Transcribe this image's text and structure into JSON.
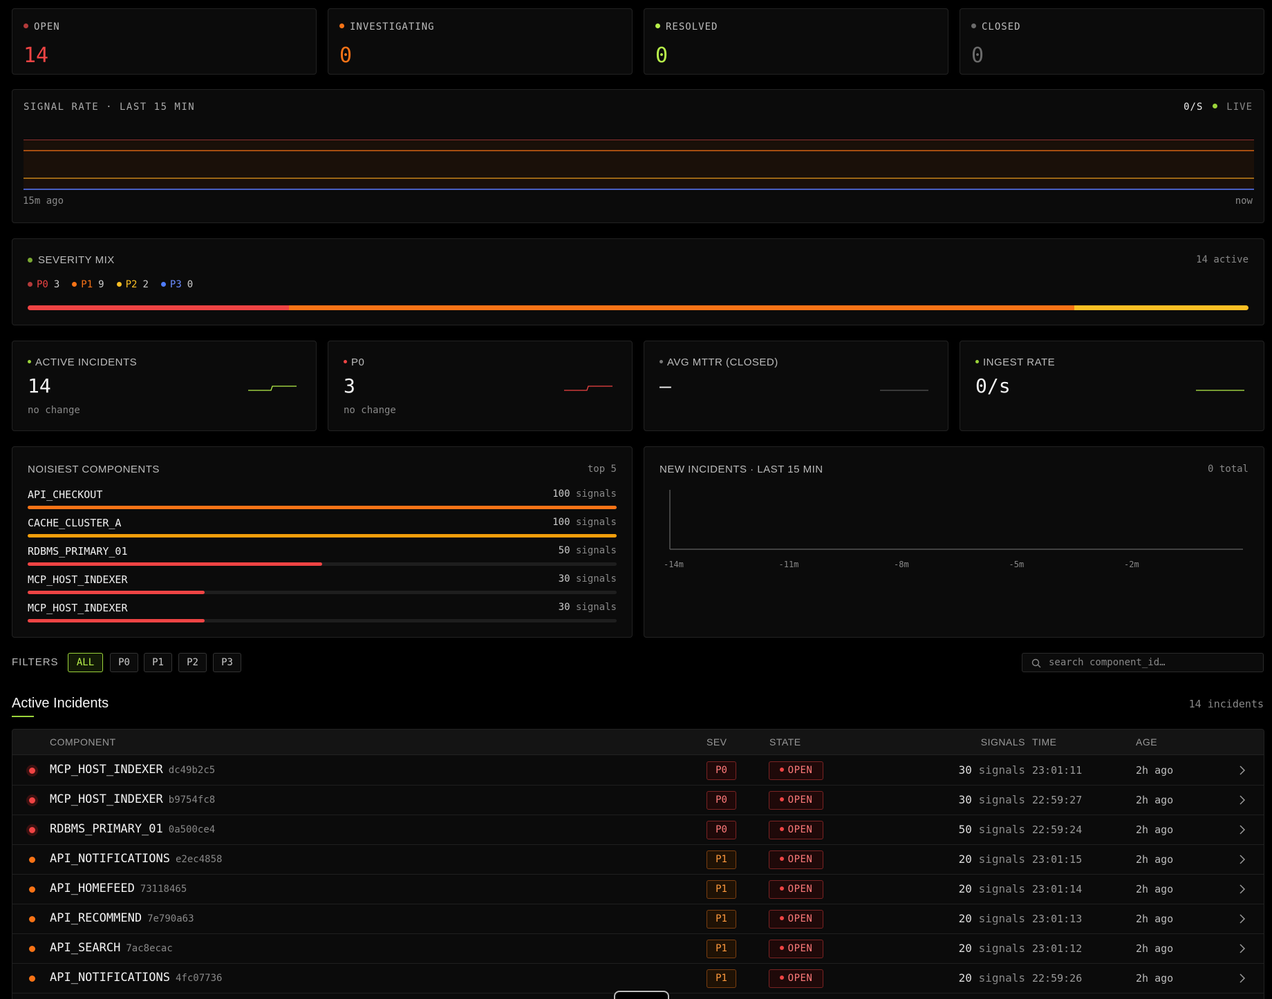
{
  "status_cards": [
    {
      "label": "OPEN",
      "value": "14",
      "color": "#ef4444",
      "dot": "#b33a3a"
    },
    {
      "label": "INVESTIGATING",
      "value": "0",
      "color": "#f97316",
      "dot": "#f97316"
    },
    {
      "label": "RESOLVED",
      "value": "0",
      "color": "#b7f04a",
      "dot": "#b7f04a"
    },
    {
      "label": "CLOSED",
      "value": "0",
      "color": "#6b6b6b",
      "dot": "#6b6b6b"
    }
  ],
  "signal_rate": {
    "title": "SIGNAL RATE · LAST 15 MIN",
    "rate": "0/S",
    "live": "LIVE",
    "start_label": "15m ago",
    "end_label": "now"
  },
  "severity_mix": {
    "title": "SEVERITY MIX",
    "active": "14 active",
    "items": [
      {
        "label": "P0",
        "count": "3",
        "color": "#ef4444",
        "dot": "#b33a3a",
        "value": 3
      },
      {
        "label": "P1",
        "count": "9",
        "color": "#f97316",
        "dot": "#f97316",
        "value": 9
      },
      {
        "label": "P2",
        "count": "2",
        "color": "#fbbf24",
        "dot": "#fbbf24",
        "value": 2
      },
      {
        "label": "P3",
        "count": "0",
        "color": "#6b8cff",
        "dot": "#4f7cff",
        "value": 0
      }
    ]
  },
  "metrics": [
    {
      "label": "ACTIVE INCIDENTS",
      "value": "14",
      "sub": "no change",
      "dot": "#9bd43a",
      "spark": "#b7f04a",
      "shape": "step"
    },
    {
      "label": "P0",
      "value": "3",
      "sub": "no change",
      "dot": "#ef4444",
      "spark": "#ef4444",
      "shape": "step"
    },
    {
      "label": "AVG MTTR (CLOSED)",
      "value": "—",
      "sub": "",
      "dot": "#777777",
      "spark": "#555555",
      "shape": "flat"
    },
    {
      "label": "INGEST RATE",
      "value": "0/s",
      "sub": "",
      "dot": "#9bd43a",
      "spark": "#b7f04a",
      "shape": "flat"
    }
  ],
  "noisiest": {
    "title": "NOISIEST COMPONENTS",
    "top": "top 5",
    "unit": "signals",
    "max": 100,
    "items": [
      {
        "name": "API_CHECKOUT",
        "count": "100",
        "value": 100,
        "color": "#f97316"
      },
      {
        "name": "CACHE_CLUSTER_A",
        "count": "100",
        "value": 100,
        "color": "#f59e0b"
      },
      {
        "name": "RDBMS_PRIMARY_01",
        "count": "50",
        "value": 50,
        "color": "#ef4444"
      },
      {
        "name": "MCP_HOST_INDEXER",
        "count": "30",
        "value": 30,
        "color": "#ef4444"
      },
      {
        "name": "MCP_HOST_INDEXER",
        "count": "30",
        "value": 30,
        "color": "#ef4444"
      }
    ]
  },
  "new_incidents": {
    "title": "NEW INCIDENTS · LAST 15 MIN",
    "total": "0 total",
    "ticks": [
      "-14m",
      "-11m",
      "-8m",
      "-5m",
      "-2m"
    ]
  },
  "filters": {
    "label": "FILTERS",
    "chips": [
      "ALL",
      "P0",
      "P1",
      "P2",
      "P3"
    ],
    "active": "ALL",
    "search_placeholder": "search component_id…"
  },
  "incidents": {
    "title": "Active Incidents",
    "count": "14 incidents",
    "columns": {
      "component": "COMPONENT",
      "sev": "SEV",
      "state": "STATE",
      "signals": "SIGNALS",
      "time": "TIME",
      "age": "AGE"
    },
    "unit": "signals",
    "rows": [
      {
        "component": "MCP_HOST_INDEXER",
        "id": "dc49b2c5",
        "sev": "P0",
        "state": "OPEN",
        "signals": "30",
        "time": "23:01:11",
        "age": "2h ago"
      },
      {
        "component": "MCP_HOST_INDEXER",
        "id": "b9754fc8",
        "sev": "P0",
        "state": "OPEN",
        "signals": "30",
        "time": "22:59:27",
        "age": "2h ago"
      },
      {
        "component": "RDBMS_PRIMARY_01",
        "id": "0a500ce4",
        "sev": "P0",
        "state": "OPEN",
        "signals": "50",
        "time": "22:59:24",
        "age": "2h ago"
      },
      {
        "component": "API_NOTIFICATIONS",
        "id": "e2ec4858",
        "sev": "P1",
        "state": "OPEN",
        "signals": "20",
        "time": "23:01:15",
        "age": "2h ago"
      },
      {
        "component": "API_HOMEFEED",
        "id": "73118465",
        "sev": "P1",
        "state": "OPEN",
        "signals": "20",
        "time": "23:01:14",
        "age": "2h ago"
      },
      {
        "component": "API_RECOMMEND",
        "id": "7e790a63",
        "sev": "P1",
        "state": "OPEN",
        "signals": "20",
        "time": "23:01:13",
        "age": "2h ago"
      },
      {
        "component": "API_SEARCH",
        "id": "7ac8ecac",
        "sev": "P1",
        "state": "OPEN",
        "signals": "20",
        "time": "23:01:12",
        "age": "2h ago"
      },
      {
        "component": "API_NOTIFICATIONS",
        "id": "4fc07736",
        "sev": "P1",
        "state": "OPEN",
        "signals": "20",
        "time": "22:59:26",
        "age": "2h ago"
      }
    ]
  }
}
